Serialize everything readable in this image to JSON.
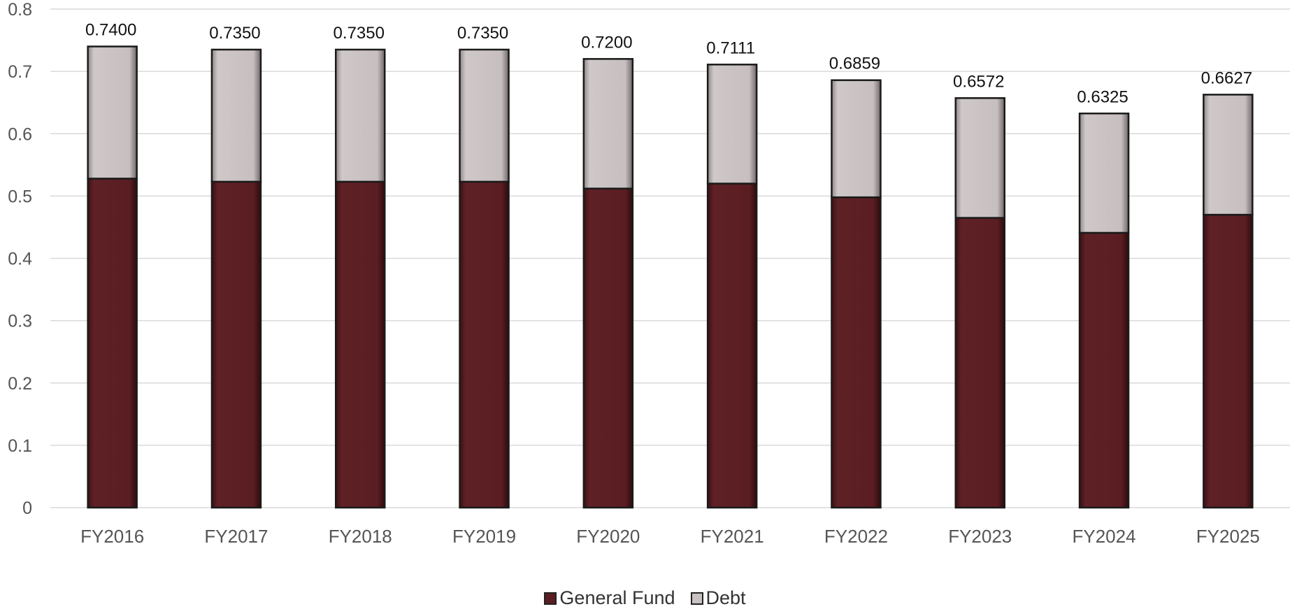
{
  "chart_data": {
    "type": "bar",
    "stacked": true,
    "categories": [
      "FY2016",
      "FY2017",
      "FY2018",
      "FY2019",
      "FY2020",
      "FY2021",
      "FY2022",
      "FY2023",
      "FY2024",
      "FY2025"
    ],
    "series": [
      {
        "name": "General Fund",
        "color": "#5a1e22",
        "values": [
          0.528,
          0.523,
          0.523,
          0.523,
          0.512,
          0.52,
          0.498,
          0.465,
          0.441,
          0.47
        ]
      },
      {
        "name": "Debt",
        "color": "#c9c2c2",
        "values": [
          0.212,
          0.212,
          0.212,
          0.212,
          0.208,
          0.191,
          0.1879,
          0.1922,
          0.1915,
          0.1927
        ]
      }
    ],
    "totals": [
      "0.7400",
      "0.7350",
      "0.7350",
      "0.7350",
      "0.7200",
      "0.7111",
      "0.6859",
      "0.6572",
      "0.6325",
      "0.6627"
    ],
    "y_ticks": [
      "0",
      "0.1",
      "0.2",
      "0.3",
      "0.4",
      "0.5",
      "0.6",
      "0.7",
      "0.8"
    ],
    "ylim": [
      0,
      0.8
    ],
    "grid": true,
    "legend_position": "bottom"
  }
}
